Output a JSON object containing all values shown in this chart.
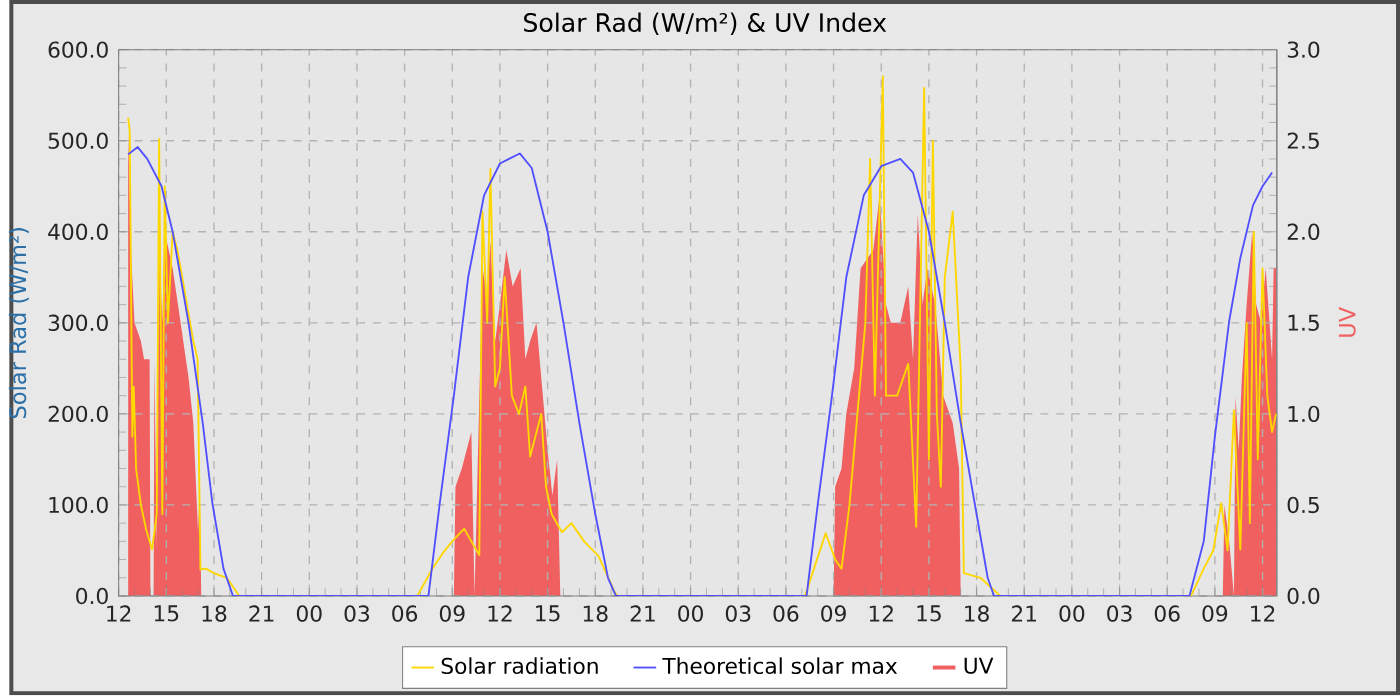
{
  "chart_data": {
    "type": "line",
    "title": "Solar Rad (W/m²) &  UV Index",
    "ylabel": "Solar Rad (W/m²)",
    "y2label": "UV",
    "xlim": [
      12,
      84.9
    ],
    "ylim": [
      0,
      600
    ],
    "y2lim": [
      0,
      3
    ],
    "xticks": [
      {
        "value": 12,
        "label": "12"
      },
      {
        "value": 15,
        "label": "15"
      },
      {
        "value": 18,
        "label": "18"
      },
      {
        "value": 21,
        "label": "21"
      },
      {
        "value": 24,
        "label": "00"
      },
      {
        "value": 27,
        "label": "03"
      },
      {
        "value": 30,
        "label": "06"
      },
      {
        "value": 33,
        "label": "09"
      },
      {
        "value": 36,
        "label": "12"
      },
      {
        "value": 39,
        "label": "15"
      },
      {
        "value": 42,
        "label": "18"
      },
      {
        "value": 45,
        "label": "21"
      },
      {
        "value": 48,
        "label": "00"
      },
      {
        "value": 51,
        "label": "03"
      },
      {
        "value": 54,
        "label": "06"
      },
      {
        "value": 57,
        "label": "09"
      },
      {
        "value": 60,
        "label": "12"
      },
      {
        "value": 63,
        "label": "15"
      },
      {
        "value": 66,
        "label": "18"
      },
      {
        "value": 69,
        "label": "21"
      },
      {
        "value": 72,
        "label": "00"
      },
      {
        "value": 75,
        "label": "03"
      },
      {
        "value": 78,
        "label": "06"
      },
      {
        "value": 81,
        "label": "09"
      },
      {
        "value": 84,
        "label": "12"
      }
    ],
    "yticks": [
      {
        "value": 0,
        "label": "0.0"
      },
      {
        "value": 100,
        "label": "100.0"
      },
      {
        "value": 200,
        "label": "200.0"
      },
      {
        "value": 300,
        "label": "300.0"
      },
      {
        "value": 400,
        "label": "400.0"
      },
      {
        "value": 500,
        "label": "500.0"
      },
      {
        "value": 600,
        "label": "600.0"
      }
    ],
    "y2ticks": [
      {
        "value": 0,
        "label": "0.0"
      },
      0.5,
      {
        "value": 1,
        "label": "1.0"
      },
      1.5,
      {
        "value": 2,
        "label": "2.0"
      },
      2.5,
      {
        "value": 3,
        "label": "3.0"
      }
    ],
    "grid": true,
    "legend": "bottom",
    "series": [
      {
        "name": "Solar radiation",
        "color": "#ffd700",
        "x": [
          12.6,
          12.7,
          12.86,
          12.95,
          13.1,
          13.4,
          13.73,
          14.1,
          14.4,
          14.55,
          14.75,
          14.9,
          15.1,
          15.4,
          15.7,
          16.1,
          16.7,
          16.97,
          17.15,
          17.5,
          18.0,
          18.8,
          19.4,
          19.6,
          30.8,
          31.75,
          32.4,
          33.0,
          33.75,
          34.2,
          34.7,
          34.9,
          35.2,
          35.4,
          35.7,
          36.0,
          36.3,
          36.75,
          37.2,
          37.6,
          37.9,
          38.6,
          38.9,
          39.25,
          39.9,
          40.5,
          41.3,
          42.2,
          43.2,
          43.4,
          55.2,
          56.5,
          57.1,
          57.5,
          58.0,
          58.5,
          59.0,
          59.3,
          59.6,
          60.1,
          60.3,
          61.0,
          61.7,
          62.2,
          62.7,
          63.0,
          63.25,
          63.5,
          63.75,
          64.0,
          64.5,
          65.0,
          65.2,
          66.25,
          67.5,
          79.5,
          80.3,
          80.9,
          81.4,
          81.8,
          82.2,
          82.6,
          83.0,
          83.2,
          83.45,
          83.7,
          84.0,
          84.3,
          84.6,
          84.85
        ],
        "values": [
          525,
          510,
          175,
          230,
          140,
          100,
          73,
          51,
          90,
          502,
          90,
          450,
          300,
          400,
          380,
          340,
          280,
          260,
          29,
          30,
          25,
          20,
          5,
          0,
          0,
          30,
          47,
          60,
          74,
          60,
          45,
          422,
          300,
          469,
          230,
          250,
          350,
          220,
          200,
          230,
          153,
          200,
          120,
          90,
          70,
          80,
          60,
          44,
          5,
          0,
          0,
          69,
          40,
          30,
          100,
          200,
          300,
          480,
          220,
          571,
          220,
          220,
          255,
          76,
          558,
          150,
          500,
          200,
          120,
          350,
          422,
          250,
          25,
          20,
          0,
          0,
          30,
          50,
          102,
          50,
          204,
          51,
          300,
          80,
          400,
          150,
          360,
          220,
          180,
          200
        ]
      },
      {
        "name": "Theoretical solar max",
        "color": "#5050ff",
        "x": [
          12.6,
          13.2,
          13.8,
          14.7,
          15.4,
          16.4,
          17.3,
          17.9,
          18.6,
          19.2,
          31.5,
          32.2,
          33.1,
          34.0,
          35.0,
          36.0,
          37.25,
          38.0,
          39.0,
          40.0,
          41.0,
          42.0,
          42.8,
          43.3,
          55.3,
          56.0,
          56.9,
          57.8,
          58.9,
          60.0,
          61.2,
          62.0,
          63.0,
          64.0,
          65.0,
          66.0,
          66.7,
          67.1,
          79.4,
          80.3,
          81.0,
          81.9,
          82.6,
          83.4,
          84.0,
          84.6
        ],
        "values": [
          485,
          493,
          480,
          450,
          400,
          300,
          189,
          102,
          30,
          0,
          0,
          100,
          220,
          350,
          440,
          475,
          486,
          470,
          400,
          300,
          190,
          90,
          20,
          0,
          0,
          100,
          220,
          350,
          440,
          472,
          480,
          465,
          400,
          300,
          190,
          90,
          20,
          0,
          0,
          60,
          175,
          302,
          371,
          429,
          450,
          465
        ]
      },
      {
        "name": "UV",
        "color": "#f06060",
        "type": "area",
        "axis": "y2",
        "x": [
          12.6,
          12.8,
          13.0,
          13.4,
          13.6,
          13.95,
          14.0,
          14.2,
          14.25,
          14.4,
          14.5,
          14.75,
          14.9,
          15.4,
          15.9,
          16.4,
          16.7,
          17.0,
          17.1,
          17.2,
          33.1,
          33.2,
          33.6,
          34.2,
          34.4,
          34.9,
          35.2,
          35.4,
          35.7,
          36.0,
          36.4,
          36.8,
          37.3,
          37.6,
          37.9,
          38.3,
          38.6,
          38.9,
          39.0,
          39.3,
          39.6,
          39.8,
          57.0,
          57.1,
          57.5,
          57.8,
          58.3,
          58.7,
          59.5,
          59.9,
          60.3,
          60.6,
          61.2,
          61.7,
          62.0,
          62.3,
          62.6,
          62.9,
          63.4,
          63.9,
          64.5,
          64.9,
          65.0,
          81.5,
          81.6,
          81.9,
          82.2,
          82.3,
          82.5,
          82.7,
          83.0,
          83.35,
          83.6,
          83.9,
          84.2,
          84.6,
          84.7,
          84.85
        ],
        "values": [
          2.55,
          1.85,
          1.5,
          1.4,
          1.3,
          1.3,
          0,
          0,
          1.3,
          0.25,
          2.0,
          1.5,
          2.0,
          1.8,
          1.5,
          1.2,
          0.95,
          0.35,
          0.6,
          0,
          0,
          0.6,
          0.7,
          0.9,
          0,
          1.8,
          1.65,
          1.95,
          1.4,
          1.6,
          1.9,
          1.7,
          1.8,
          1.3,
          1.4,
          1.5,
          1.2,
          0.9,
          0.8,
          0.55,
          0.75,
          0,
          0,
          0.6,
          0.7,
          1.0,
          1.25,
          1.8,
          1.9,
          2.2,
          1.6,
          1.5,
          1.5,
          1.7,
          1.3,
          2.1,
          1.6,
          1.8,
          1.6,
          1.1,
          0.95,
          0.7,
          0,
          0,
          0.5,
          0.3,
          0,
          1.1,
          0.8,
          1.2,
          1.6,
          2.0,
          1.6,
          1.5,
          1.8,
          1.3,
          1.8,
          1.8
        ]
      }
    ]
  }
}
